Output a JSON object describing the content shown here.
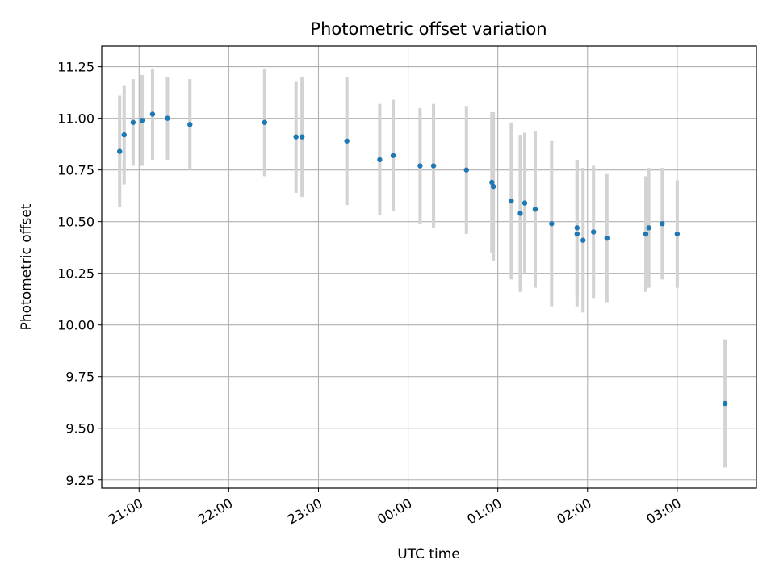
{
  "chart_data": {
    "type": "scatter",
    "title": "Photometric offset variation",
    "xlabel": "UTC time",
    "ylabel": "Photometric offset",
    "x_axis_type": "time",
    "xlim": [
      "20:35",
      "03:53"
    ],
    "ylim": [
      9.21,
      11.35
    ],
    "grid": true,
    "x_ticks": [
      "21:00",
      "22:00",
      "23:00",
      "00:00",
      "01:00",
      "02:00",
      "03:00"
    ],
    "y_ticks": [
      "9.25",
      "9.50",
      "9.75",
      "10.00",
      "10.25",
      "10.50",
      "10.75",
      "11.00",
      "11.25"
    ],
    "point_color": "#1f77b4",
    "errorbar_color": "#d3d3d3",
    "points": [
      {
        "x": "20:47",
        "y": 10.84,
        "err": 0.27
      },
      {
        "x": "20:50",
        "y": 10.92,
        "err": 0.24
      },
      {
        "x": "20:56",
        "y": 10.98,
        "err": 0.21
      },
      {
        "x": "21:02",
        "y": 10.99,
        "err": 0.22
      },
      {
        "x": "21:09",
        "y": 11.02,
        "err": 0.22
      },
      {
        "x": "21:19",
        "y": 11.0,
        "err": 0.2
      },
      {
        "x": "21:34",
        "y": 10.97,
        "err": 0.22
      },
      {
        "x": "22:24",
        "y": 10.98,
        "err": 0.26
      },
      {
        "x": "22:45",
        "y": 10.91,
        "err": 0.27
      },
      {
        "x": "22:49",
        "y": 10.91,
        "err": 0.29
      },
      {
        "x": "23:19",
        "y": 10.89,
        "err": 0.31
      },
      {
        "x": "23:41",
        "y": 10.8,
        "err": 0.27
      },
      {
        "x": "23:50",
        "y": 10.82,
        "err": 0.27
      },
      {
        "x": "00:08",
        "y": 10.77,
        "err": 0.28
      },
      {
        "x": "00:17",
        "y": 10.77,
        "err": 0.3
      },
      {
        "x": "00:39",
        "y": 10.75,
        "err": 0.31
      },
      {
        "x": "00:56",
        "y": 10.69,
        "err": 0.34
      },
      {
        "x": "00:57",
        "y": 10.67,
        "err": 0.36
      },
      {
        "x": "01:09",
        "y": 10.6,
        "err": 0.38
      },
      {
        "x": "01:15",
        "y": 10.54,
        "err": 0.38
      },
      {
        "x": "01:18",
        "y": 10.59,
        "err": 0.34
      },
      {
        "x": "01:25",
        "y": 10.56,
        "err": 0.38
      },
      {
        "x": "01:36",
        "y": 10.49,
        "err": 0.4
      },
      {
        "x": "01:53",
        "y": 10.47,
        "err": 0.33
      },
      {
        "x": "01:53",
        "y": 10.44,
        "err": 0.35
      },
      {
        "x": "01:57",
        "y": 10.41,
        "err": 0.35
      },
      {
        "x": "02:04",
        "y": 10.45,
        "err": 0.32
      },
      {
        "x": "02:13",
        "y": 10.42,
        "err": 0.31
      },
      {
        "x": "02:39",
        "y": 10.44,
        "err": 0.28
      },
      {
        "x": "02:41",
        "y": 10.47,
        "err": 0.29
      },
      {
        "x": "02:50",
        "y": 10.49,
        "err": 0.27
      },
      {
        "x": "03:00",
        "y": 10.44,
        "err": 0.26
      },
      {
        "x": "03:32",
        "y": 9.62,
        "err": 0.31
      }
    ]
  }
}
